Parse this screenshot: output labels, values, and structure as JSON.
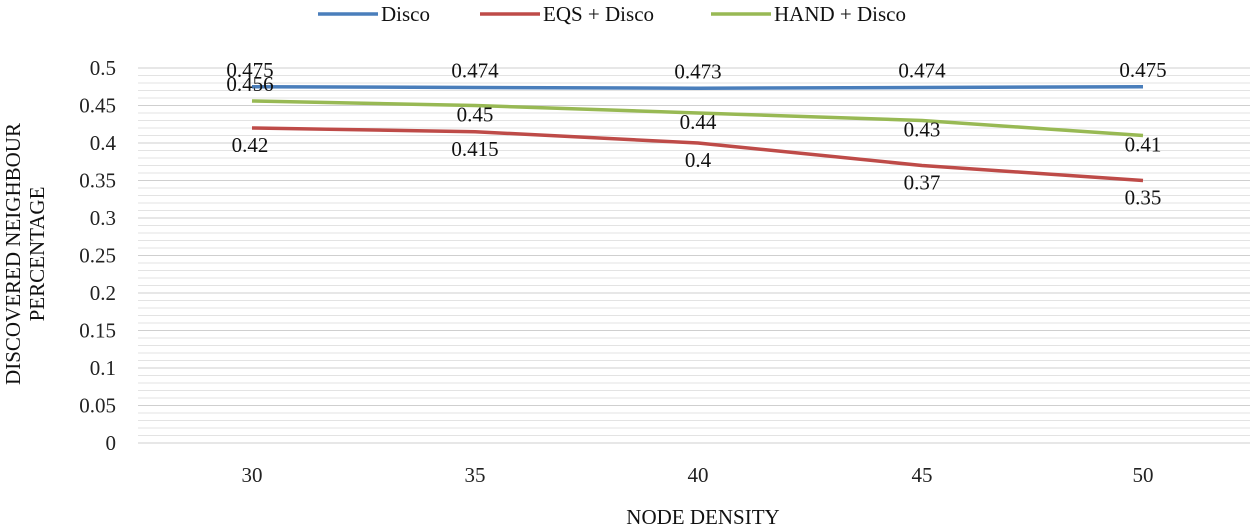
{
  "chart_data": {
    "type": "line",
    "title": "",
    "xlabel": "NODE DENSITY",
    "ylabel": [
      "DISCOVERED NEIGHBOUR",
      "PERCENTAGE"
    ],
    "categories": [
      "30",
      "35",
      "40",
      "45",
      "50"
    ],
    "ylim": [
      0,
      0.5
    ],
    "yticks": [
      "0",
      "0.05",
      "0.1",
      "0.15",
      "0.2",
      "0.25",
      "0.3",
      "0.35",
      "0.4",
      "0.45",
      "0.5"
    ],
    "grid": true,
    "legend_position": "top",
    "series": [
      {
        "name": "Disco",
        "color": "#4a7ebb",
        "values": [
          0.475,
          0.474,
          0.473,
          0.474,
          0.475
        ],
        "labels": [
          "0.475",
          "0.474",
          "0.473",
          "0.474",
          "0.475"
        ]
      },
      {
        "name": "EQS + Disco",
        "color": "#be4b48",
        "values": [
          0.42,
          0.415,
          0.4,
          0.37,
          0.35
        ],
        "labels": [
          "0.42",
          "0.415",
          "0.4",
          "0.37",
          "0.35"
        ]
      },
      {
        "name": "HAND + Disco",
        "color": "#98b954",
        "values": [
          0.456,
          0.45,
          0.44,
          0.43,
          0.41
        ],
        "labels": [
          "0.456",
          "0.45",
          "0.44",
          "0.43",
          "0.41"
        ]
      }
    ]
  }
}
